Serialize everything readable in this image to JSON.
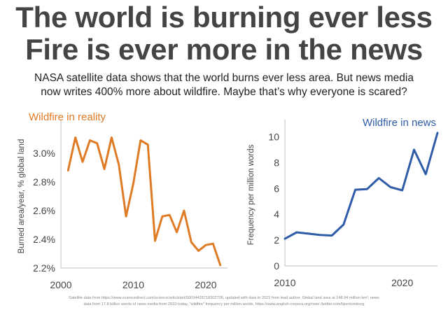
{
  "header": {
    "title_line1": "The world is burning ever less",
    "title_line2": "Fire is ever more in the news",
    "subtitle_line1": "NASA satellite data shows that the world burns ever less area. But news media",
    "subtitle_line2": "now writes 400% more about wildfire. Maybe that’s why everyone is scared?"
  },
  "footnote": {
    "line1": "Satellite data from https://www.sciencedirect.com/science/article/pii/S0034425718302705, updated with data to 2022 from lead author. Global land area at 148.94 million km², news",
    "line2": "data from 17.8 billion words of news media from 2010-today, \"wildfire\" frequency per million words, https://www.english-corpora.org/now/ /twitter.com/bjornlomborg"
  },
  "chart_data": [
    {
      "type": "line",
      "title": "",
      "annotation": "Wildfire in reality",
      "xlabel": "",
      "ylabel": "Burned area/year, % global land",
      "xlim": [
        2000,
        2023
      ],
      "ylim": [
        2.2,
        3.2
      ],
      "x_ticks": [
        "2000",
        "2010",
        "2020"
      ],
      "y_ticks": [
        "2.2%",
        "2.4%",
        "2.6%",
        "2.8%",
        "3.0%"
      ],
      "grid": false,
      "color": "#e07b25",
      "series": [
        {
          "x": [
            2001,
            2002,
            2003,
            2004,
            2005,
            2006,
            2007,
            2008,
            2009,
            2010,
            2011,
            2012,
            2013,
            2014,
            2015,
            2016,
            2017,
            2018,
            2019,
            2020,
            2021,
            2022
          ],
          "values": [
            2.88,
            3.11,
            2.94,
            3.09,
            3.07,
            2.89,
            3.11,
            2.92,
            2.56,
            2.79,
            3.09,
            3.06,
            2.39,
            2.56,
            2.57,
            2.45,
            2.6,
            2.38,
            2.32,
            2.36,
            2.37,
            2.22
          ]
        }
      ]
    },
    {
      "type": "line",
      "title": "",
      "annotation": "Wildfire in news",
      "xlabel": "",
      "ylabel": "Frequency per million words",
      "xlim": [
        2010,
        2023
      ],
      "ylim": [
        0,
        11
      ],
      "x_ticks": [
        "2010",
        "2020"
      ],
      "y_ticks": [
        "0",
        "2",
        "4",
        "6",
        "8",
        "10"
      ],
      "grid": false,
      "color": "#2e5ca8",
      "series": [
        {
          "x": [
            2010,
            2011,
            2012,
            2013,
            2014,
            2015,
            2016,
            2017,
            2018,
            2019,
            2020,
            2021,
            2022,
            2023
          ],
          "values": [
            2.1,
            2.6,
            2.5,
            2.4,
            2.35,
            3.2,
            5.9,
            5.95,
            6.8,
            6.1,
            5.85,
            9.0,
            7.1,
            10.3
          ]
        }
      ]
    }
  ]
}
